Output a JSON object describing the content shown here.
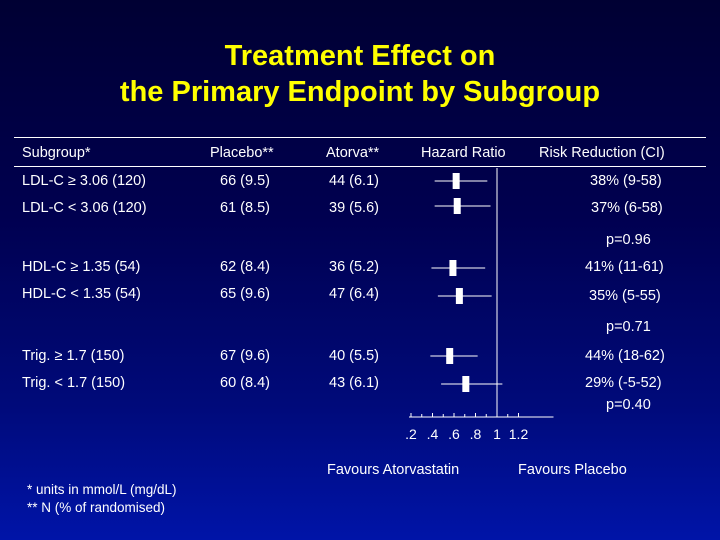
{
  "slide": {
    "title_line1": "Treatment Effect on",
    "title_line2": "the Primary Endpoint by Subgroup"
  },
  "table": {
    "headers": {
      "subgroup": "Subgroup*",
      "placebo": "Placebo**",
      "atorva": "Atorva**",
      "hazard_ratio": "Hazard Ratio",
      "risk_reduction": "Risk Reduction (CI)"
    },
    "rows": [
      {
        "subgroup": "LDL-C ≥ 3.06 (120)",
        "placebo": "66 (9.5)",
        "atorva": "44 (6.1)",
        "risk_reduction": "38% (9-58)"
      },
      {
        "subgroup": "LDL-C < 3.06 (120)",
        "placebo": "61 (8.5)",
        "atorva": "39 (5.6)",
        "risk_reduction": "37% (6-58)"
      },
      {
        "subgroup": "HDL-C ≥ 1.35 (54)",
        "placebo": "62 (8.4)",
        "atorva": "36 (5.2)",
        "risk_reduction": "41% (11-61)"
      },
      {
        "subgroup": "HDL-C < 1.35 (54)",
        "placebo": "65 (9.6)",
        "atorva": "47 (6.4)",
        "risk_reduction": "35% (5-55)"
      },
      {
        "subgroup": "Trig. ≥ 1.7 (150)",
        "placebo": "67 (9.6)",
        "atorva": "40 (5.5)",
        "risk_reduction": "44% (18-62)"
      },
      {
        "subgroup": "Trig. < 1.7 (150)",
        "placebo": "60 (8.4)",
        "atorva": "43 (6.1)",
        "risk_reduction": "29% (-5-52)"
      }
    ],
    "p_values": [
      "p=0.96",
      "p=0.71",
      "p=0.40"
    ]
  },
  "favours": {
    "left": "Favours Atorvastatin",
    "right": "Favours Placebo"
  },
  "footnotes": {
    "line1": "* units in mmol/L (mg/dL)",
    "line2": "** N (% of randomised)"
  },
  "colors": {
    "title": "#ffff00",
    "text": "#ffffff",
    "background_top": "#000033",
    "background_bottom": "#0014a8"
  },
  "chart_data": {
    "type": "forest",
    "xlabel": "",
    "ylabel": "",
    "xlim": [
      0.1,
      1.3
    ],
    "x_ticks": [
      0.2,
      0.4,
      0.6,
      0.8,
      1.0,
      1.2
    ],
    "x_tick_labels": [
      ".2",
      ".4",
      ".6",
      ".8",
      "1",
      "1.2"
    ],
    "reference_line": 1.0,
    "categories": [
      "LDL-C ≥ 3.06 (120)",
      "LDL-C < 3.06 (120)",
      "HDL-C ≥ 1.35 (54)",
      "HDL-C < 1.35 (54)",
      "Trig. ≥ 1.7 (150)",
      "Trig. < 1.7 (150)"
    ],
    "hazard_ratio": [
      0.62,
      0.63,
      0.59,
      0.65,
      0.56,
      0.71
    ],
    "ci_lower": [
      0.42,
      0.42,
      0.39,
      0.45,
      0.38,
      0.48
    ],
    "ci_upper": [
      0.91,
      0.94,
      0.89,
      0.95,
      0.82,
      1.05
    ]
  }
}
